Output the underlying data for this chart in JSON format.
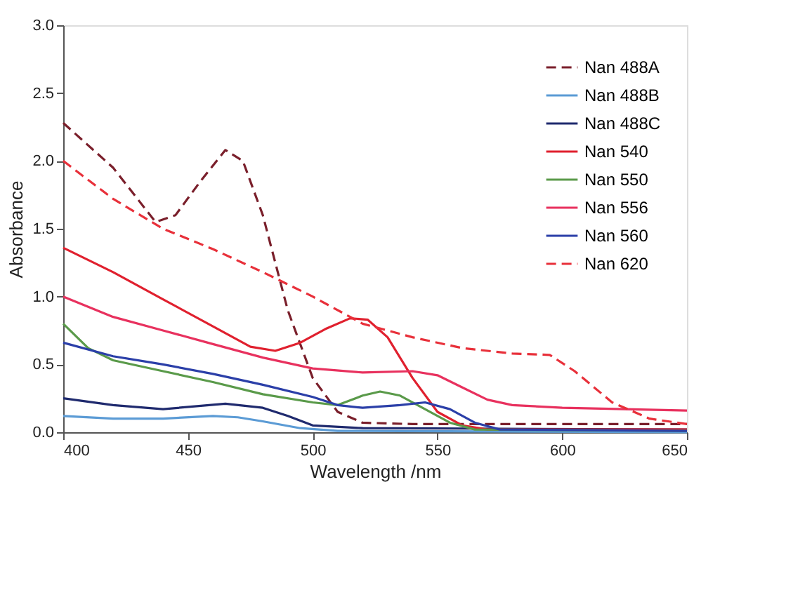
{
  "chart_data": {
    "type": "line",
    "xlabel": "Wavelength /nm",
    "ylabel": "Absorbance",
    "xlim": [
      400,
      650
    ],
    "ylim": [
      0,
      3
    ],
    "xticks": [
      400,
      450,
      500,
      550,
      600,
      650
    ],
    "yticks": [
      {
        "value": 0,
        "label": "0.0"
      },
      {
        "value": 0.5,
        "label": "0.5"
      },
      {
        "value": 1,
        "label": "1.0"
      },
      {
        "value": 1.5,
        "label": "1.5"
      },
      {
        "value": 2,
        "label": "2.0"
      },
      {
        "value": 2.5,
        "label": "2.5"
      },
      {
        "value": 3,
        "label": "3.0"
      }
    ],
    "grid": false,
    "legend": "top right",
    "marker": "none",
    "series": [
      {
        "name": "Nan 488A",
        "color": "#7a1f2b",
        "line_style": "dashed",
        "x": [
          400,
          420,
          437,
          445,
          455,
          465,
          472,
          480,
          490,
          500,
          510,
          520,
          540,
          650
        ],
        "values": [
          2.28,
          1.95,
          1.55,
          1.6,
          1.85,
          2.08,
          2.0,
          1.6,
          0.9,
          0.4,
          0.15,
          0.07,
          0.06,
          0.06
        ]
      },
      {
        "name": "Nan 488B",
        "color": "#5b9bd5",
        "line_style": "solid",
        "x": [
          400,
          420,
          440,
          460,
          470,
          480,
          495,
          510,
          650
        ],
        "values": [
          0.12,
          0.1,
          0.1,
          0.12,
          0.11,
          0.08,
          0.03,
          0.01,
          0.0
        ]
      },
      {
        "name": "Nan 488C",
        "color": "#1f2a6e",
        "line_style": "solid",
        "x": [
          400,
          420,
          440,
          465,
          480,
          490,
          500,
          520,
          650
        ],
        "values": [
          0.25,
          0.2,
          0.17,
          0.21,
          0.18,
          0.12,
          0.05,
          0.03,
          0.02
        ]
      },
      {
        "name": "Nan 540",
        "color": "#e0202e",
        "line_style": "solid",
        "x": [
          400,
          420,
          440,
          460,
          475,
          485,
          495,
          505,
          515,
          522,
          530,
          540,
          550,
          560,
          570,
          650
        ],
        "values": [
          1.36,
          1.18,
          0.98,
          0.78,
          0.63,
          0.6,
          0.66,
          0.76,
          0.84,
          0.83,
          0.7,
          0.4,
          0.15,
          0.05,
          0.02,
          0.02
        ]
      },
      {
        "name": "Nan 550",
        "color": "#5a9a4a",
        "line_style": "solid",
        "x": [
          400,
          410,
          420,
          440,
          460,
          480,
          500,
          510,
          520,
          527,
          535,
          545,
          555,
          565,
          650
        ],
        "values": [
          0.8,
          0.62,
          0.53,
          0.45,
          0.37,
          0.28,
          0.22,
          0.2,
          0.27,
          0.3,
          0.27,
          0.17,
          0.07,
          0.02,
          0.01
        ]
      },
      {
        "name": "Nan 556",
        "color": "#e8315e",
        "line_style": "solid",
        "x": [
          400,
          420,
          440,
          460,
          480,
          500,
          520,
          540,
          550,
          560,
          570,
          580,
          600,
          650
        ],
        "values": [
          1.0,
          0.85,
          0.75,
          0.65,
          0.55,
          0.47,
          0.44,
          0.45,
          0.42,
          0.33,
          0.24,
          0.2,
          0.18,
          0.16
        ]
      },
      {
        "name": "Nan 560",
        "color": "#2b3fa8",
        "line_style": "solid",
        "x": [
          400,
          420,
          440,
          460,
          480,
          500,
          510,
          520,
          535,
          545,
          555,
          565,
          575,
          650
        ],
        "values": [
          0.66,
          0.56,
          0.5,
          0.43,
          0.35,
          0.26,
          0.2,
          0.18,
          0.2,
          0.22,
          0.17,
          0.07,
          0.02,
          0.01
        ]
      },
      {
        "name": "Nan 620",
        "color": "#e8303a",
        "line_style": "dashed",
        "x": [
          400,
          420,
          440,
          460,
          480,
          500,
          520,
          540,
          560,
          580,
          595,
          605,
          620,
          635,
          650
        ],
        "values": [
          2.0,
          1.72,
          1.5,
          1.35,
          1.18,
          1.0,
          0.8,
          0.7,
          0.62,
          0.58,
          0.57,
          0.45,
          0.22,
          0.1,
          0.06
        ]
      }
    ]
  }
}
